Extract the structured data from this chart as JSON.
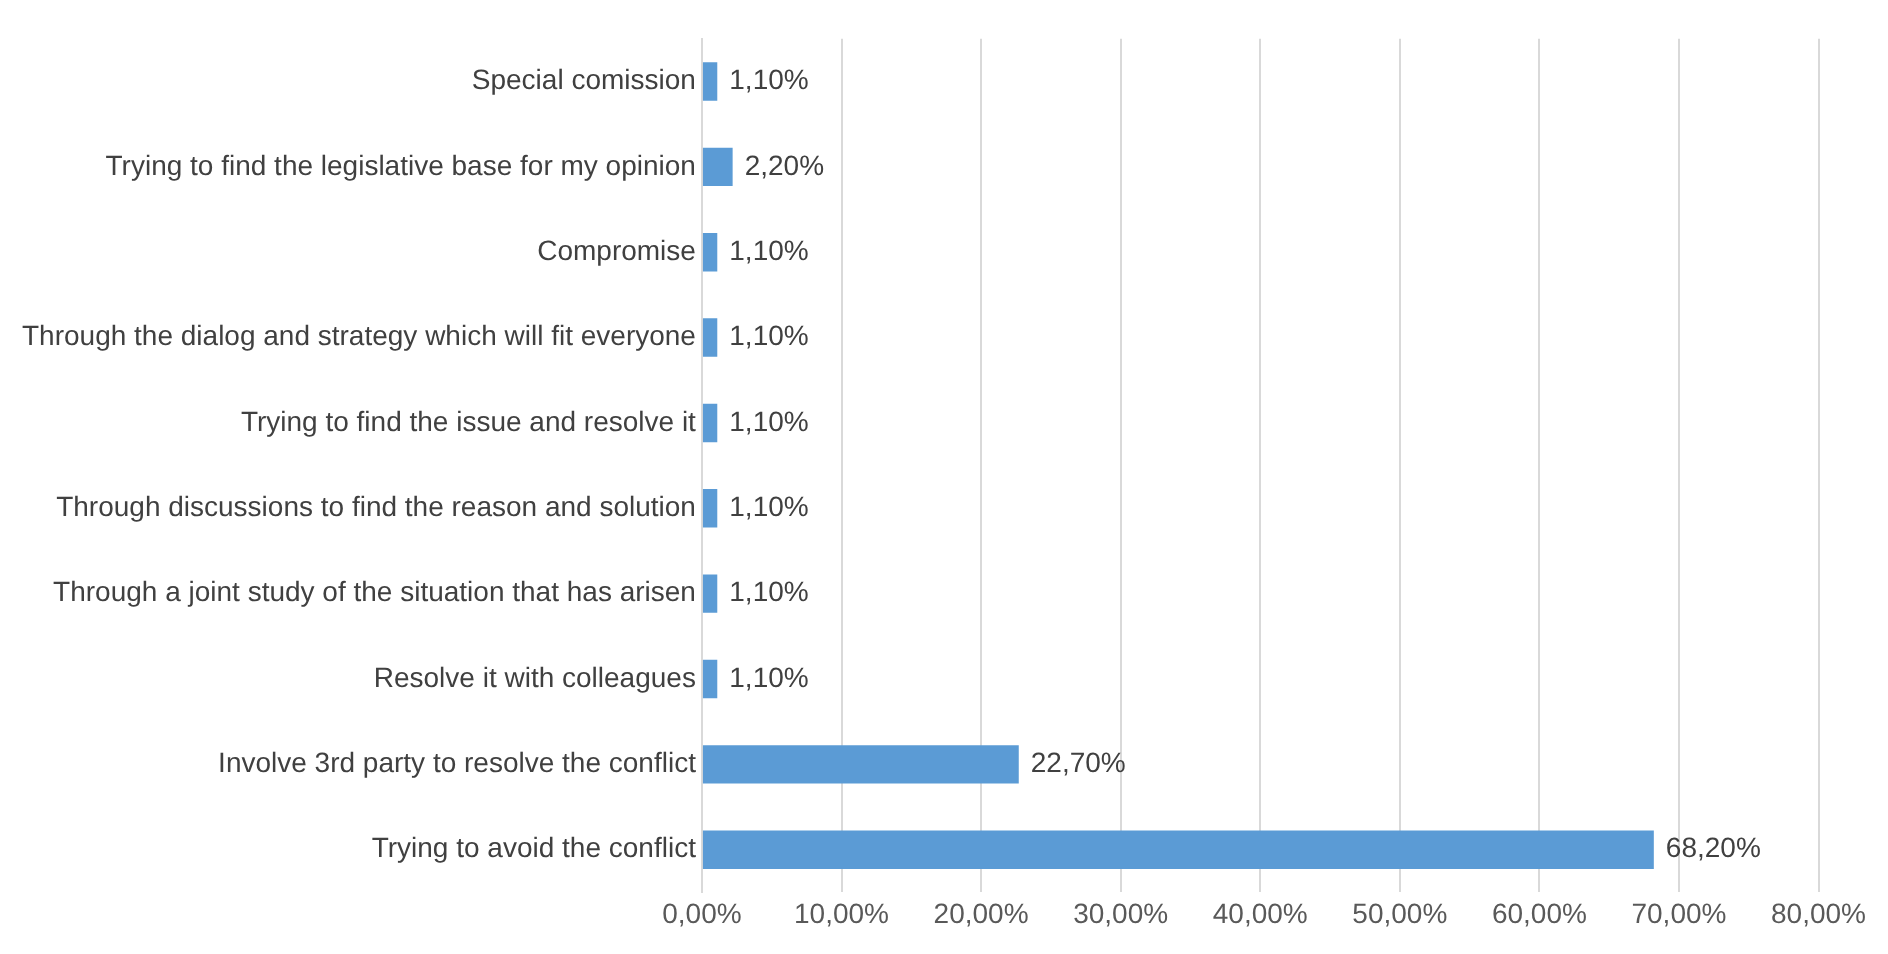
{
  "chart_data": {
    "type": "bar",
    "orientation": "horizontal",
    "categories": [
      "Special comission",
      "Trying to find the legislative base for my opinion",
      "Compromise",
      "Through the dialog and strategy which will fit everyone",
      "Trying to find the issue and resolve it",
      "Through discussions to find the reason and solution",
      "Through a joint study of the situation that has arisen",
      "Resolve it with colleagues",
      "Involve 3rd party to resolve the conflict",
      "Trying to avoid the conflict"
    ],
    "values": [
      1.1,
      2.2,
      1.1,
      1.1,
      1.1,
      1.1,
      1.1,
      1.1,
      22.7,
      68.2
    ],
    "value_labels": [
      "1,10%",
      "2,20%",
      "1,10%",
      "1,10%",
      "1,10%",
      "1,10%",
      "1,10%",
      "1,10%",
      "22,70%",
      "68,20%"
    ],
    "color": "#5b9bd5",
    "xlim": [
      0,
      80
    ],
    "xticks": [
      {
        "value": 0,
        "label": "0,00%"
      },
      {
        "value": 10,
        "label": "10,00%"
      },
      {
        "value": 20,
        "label": "20,00%"
      },
      {
        "value": 30,
        "label": "30,00%"
      },
      {
        "value": 40,
        "label": "40,00%"
      },
      {
        "value": 50,
        "label": "50,00%"
      },
      {
        "value": 60,
        "label": "60,00%"
      },
      {
        "value": 70,
        "label": "70,00%"
      },
      {
        "value": 80,
        "label": "80,00%"
      }
    ],
    "grid": "x"
  }
}
